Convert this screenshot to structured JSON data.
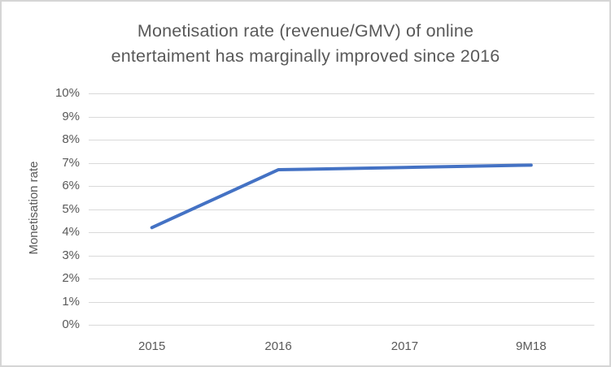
{
  "chart_data": {
    "type": "line",
    "title": "Monetisation rate (revenue/GMV) of online entertaiment has marginally improved since 2016",
    "title_lines": [
      "Monetisation rate (revenue/GMV) of online",
      "entertaiment has marginally improved since 2016"
    ],
    "xlabel": "",
    "ylabel": "Monetisation rate",
    "categories": [
      "2015",
      "2016",
      "2017",
      "9M18"
    ],
    "series": [
      {
        "name": "Monetisation rate",
        "values": [
          4.2,
          6.7,
          6.8,
          6.9
        ],
        "color": "#4472C4"
      }
    ],
    "ylim": [
      0,
      10
    ],
    "y_tick_step": 1,
    "y_tick_labels": [
      "0%",
      "1%",
      "2%",
      "3%",
      "4%",
      "5%",
      "6%",
      "7%",
      "8%",
      "9%",
      "10%"
    ],
    "grid": "horizontal",
    "legend": "none",
    "colors": {
      "line": "#4472C4",
      "text": "#595959",
      "gridline": "#D9D9D9",
      "background": "#FFFFFF",
      "border": "#D5D5D5"
    }
  }
}
